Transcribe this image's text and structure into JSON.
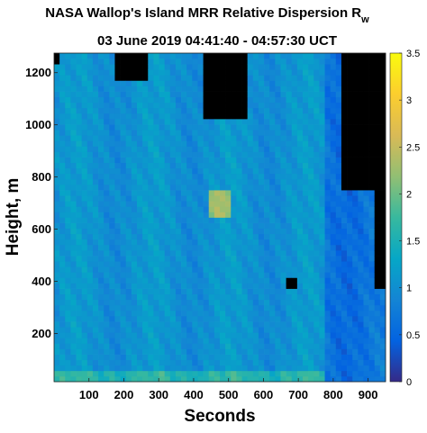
{
  "chart_data": {
    "type": "heatmap",
    "title": "NASA Wallop's Island MRR Relative Dispersion R",
    "title_subscript": "w",
    "subtitle": "03 June 2019 04:41:40 - 04:57:30 UCT",
    "xlabel": "Seconds",
    "ylabel": "Height, m",
    "xlim": [
      0,
      950
    ],
    "ylim": [
      15,
      1275
    ],
    "xticks": [
      100,
      200,
      300,
      400,
      500,
      600,
      700,
      800,
      900
    ],
    "yticks": [
      200,
      400,
      600,
      800,
      1000,
      1200
    ],
    "colorbar": {
      "range": [
        0,
        3.5
      ],
      "ticks": [
        0,
        0.5,
        1,
        1.5,
        2,
        2.5,
        3,
        3.5
      ],
      "tick_labels": [
        "0",
        "0.5",
        "1",
        "1.5",
        "2",
        "2.5",
        "3",
        "3.5"
      ],
      "colormap": "parula",
      "colors": [
        "#352a87",
        "#0363e1",
        "#1485d4",
        "#06a7c6",
        "#38b99e",
        "#92bf73",
        "#d9ba56",
        "#fcce2e",
        "#f9fb0e"
      ]
    },
    "no_data_color": "#000000",
    "background_typical_value": 1.05,
    "regions": [
      {
        "description": "low-altitude band",
        "x_range": [
          0,
          950
        ],
        "height_range": [
          15,
          60
        ],
        "approx_value": 1.6
      },
      {
        "description": "eastern low-dispersion side",
        "x_range": [
          780,
          950
        ],
        "height_range": [
          15,
          1275
        ],
        "approx_value": 0.65
      },
      {
        "description": "central elevated streak",
        "x_range": [
          440,
          500
        ],
        "height_range": [
          650,
          750
        ],
        "approx_value": 2.2
      }
    ],
    "no_data_regions": [
      {
        "x_range": [
          0,
          20
        ],
        "height_range": [
          1240,
          1275
        ]
      },
      {
        "x_range": [
          180,
          270
        ],
        "height_range": [
          1180,
          1275
        ]
      },
      {
        "x_range": [
          420,
          560
        ],
        "height_range": [
          1020,
          1275
        ]
      },
      {
        "x_range": [
          830,
          950
        ],
        "height_range": [
          760,
          1275
        ]
      },
      {
        "x_range": [
          920,
          950
        ],
        "height_range": [
          380,
          760
        ]
      },
      {
        "x_range": [
          665,
          690
        ],
        "height_range": [
          380,
          410
        ]
      }
    ]
  }
}
